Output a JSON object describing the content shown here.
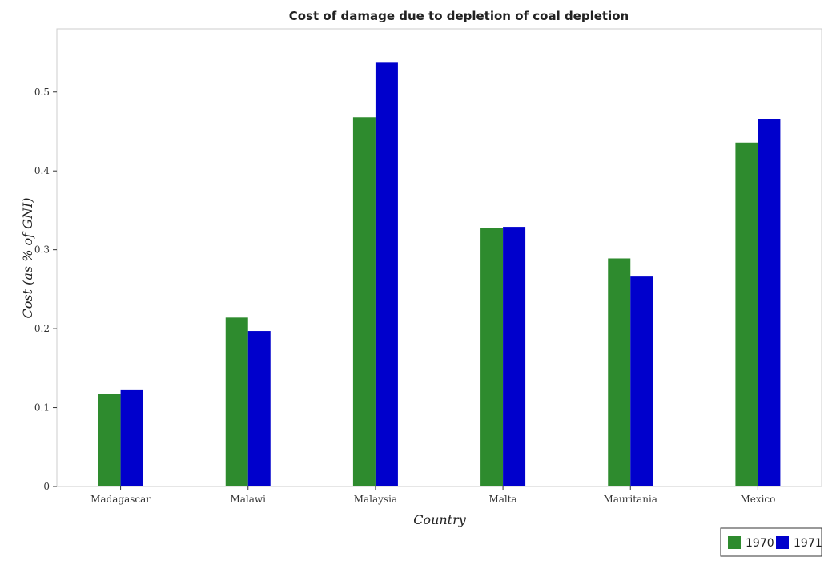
{
  "chart_data": {
    "type": "bar",
    "title": "Cost of damage due to depletion of coal depletion",
    "xlabel": "Country",
    "ylabel": "Cost (as % of GNI)",
    "categories": [
      "Madagascar",
      "Malawi",
      "Malaysia",
      "Malta",
      "Mauritania",
      "Mexico"
    ],
    "series": [
      {
        "name": "1970",
        "color": "#2e8b2e",
        "values": [
          0.117,
          0.214,
          0.468,
          0.328,
          0.289,
          0.436
        ]
      },
      {
        "name": "1971",
        "color": "#0000cc",
        "values": [
          0.122,
          0.197,
          0.538,
          0.329,
          0.266,
          0.466
        ]
      }
    ],
    "ylim": [
      0,
      0.58
    ],
    "yticks": [
      0,
      0.1,
      0.2,
      0.3,
      0.4,
      0.5
    ],
    "ytick_labels": [
      "0",
      "0.1",
      "0.2",
      "0.3",
      "0.4",
      "0.5"
    ],
    "legend_position": "bottom-right",
    "grid": false
  }
}
